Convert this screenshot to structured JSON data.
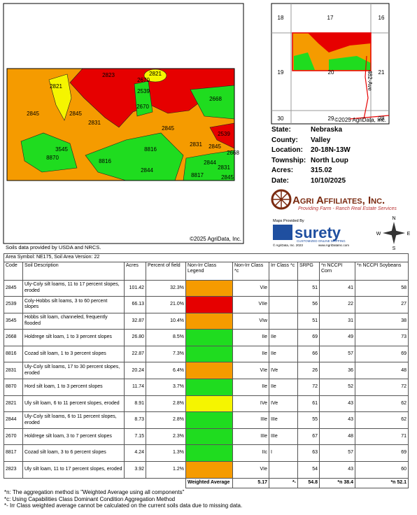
{
  "map": {
    "labels": [
      "2823",
      "2821",
      "2670",
      "2539",
      "2821",
      "2845",
      "2845",
      "2831",
      "2670",
      "2668",
      "2845",
      "2539",
      "3545",
      "8870",
      "8816",
      "8816",
      "2831",
      "2845",
      "2668",
      "2844",
      "2844",
      "2831",
      "8817",
      "2845"
    ],
    "copyright": "©2025 AgriData, Inc.",
    "source": "Soils data provided by USDA and NRCS."
  },
  "inset": {
    "labels": [
      "18",
      "17",
      "16",
      "19",
      "20",
      "21",
      "30",
      "29",
      "28",
      "482-Ave"
    ],
    "copyright": "©2025 AgriData, Inc."
  },
  "info": [
    {
      "label": "State:",
      "value": "Nebraska"
    },
    {
      "label": "County:",
      "value": "Valley"
    },
    {
      "label": "Location:",
      "value": "20-18N-13W"
    },
    {
      "label": "Township:",
      "value": "North Loup"
    },
    {
      "label": "Acres:",
      "value": "315.02"
    },
    {
      "label": "Date:",
      "value": "10/10/2025"
    }
  ],
  "logo": {
    "name": "Agri Affiliates, Inc.",
    "tagline": "Providing Farm - Ranch Real Estate Services"
  },
  "surety": {
    "provided_by": "Maps Provided By",
    "name": "surety",
    "tagline": "CUSTOMIZED ONLINE MAPPING",
    "copyright": "© AgriData, Inc. 2023",
    "url": "www.AgriDataInc.com"
  },
  "compass": [
    "N",
    "S",
    "E",
    "W"
  ],
  "table": {
    "area": "Area Symbol: NE175, Soil Area Version: 22",
    "headers": [
      "Code",
      "Soil Description",
      "Acres",
      "Percent of field",
      "Non-Irr Class Legend",
      "Non-Irr Class *c",
      "Irr Class *c",
      "SRPG",
      "*n NCCPI Corn",
      "*n NCCPI Soybeans"
    ],
    "rows": [
      {
        "code": "2845",
        "description": "Uly-Coly silt loams, 11 to 17 percent slopes, eroded",
        "acres": "101.42",
        "percent": "32.3%",
        "color": "#f59b00",
        "non_irr": "VIe",
        "srpg": "51",
        "corn": "41",
        "soy": "58"
      },
      {
        "code": "2539",
        "description": "Coly-Hobbs silt loams, 3 to 60 percent slopes",
        "acres": "66.13",
        "percent": "21.0%",
        "color": "#e60000",
        "non_irr": "VIIe",
        "srpg": "56",
        "corn": "22",
        "soy": "27"
      },
      {
        "code": "3545",
        "description": "Hobbs silt loam, channeled, frequently flooded",
        "acres": "32.87",
        "percent": "10.4%",
        "color": "#f59b00",
        "non_irr": "VIw",
        "srpg": "51",
        "corn": "31",
        "soy": "38"
      },
      {
        "code": "2668",
        "description": "Holdrege silt loam, 1 to 3 percent slopes",
        "acres": "26.80",
        "percent": "8.5%",
        "color": "#1fdc1f",
        "non_irr": "IIe",
        "irr": "IIe",
        "srpg": "69",
        "corn": "49",
        "soy": "73"
      },
      {
        "code": "8816",
        "description": "Cozad silt loam, 1 to 3 percent slopes",
        "acres": "22.87",
        "percent": "7.3%",
        "color": "#1fdc1f",
        "non_irr": "IIe",
        "irr": "IIe",
        "srpg": "66",
        "corn": "57",
        "soy": "69"
      },
      {
        "code": "2831",
        "description": "Uly-Coly silt loams, 17 to 30 percent slopes, eroded",
        "acres": "20.24",
        "percent": "6.4%",
        "color": "#f59b00",
        "non_irr": "VIe",
        "irr": "IVe",
        "srpg": "26",
        "corn": "36",
        "soy": "48"
      },
      {
        "code": "8870",
        "description": "Hord silt loam, 1 to 3 percent slopes",
        "acres": "11.74",
        "percent": "3.7%",
        "color": "#1fdc1f",
        "non_irr": "IIe",
        "irr": "IIe",
        "srpg": "72",
        "corn": "52",
        "soy": "72"
      },
      {
        "code": "2821",
        "description": "Uly silt loam, 6 to 11 percent slopes, eroded",
        "acres": "8.91",
        "percent": "2.8%",
        "color": "#f5f500",
        "non_irr": "IVe",
        "irr": "IVe",
        "srpg": "61",
        "corn": "43",
        "soy": "62"
      },
      {
        "code": "2844",
        "description": "Uly-Coly silt loams, 6 to 11 percent slopes, eroded",
        "acres": "8.73",
        "percent": "2.8%",
        "color": "#1fdc1f",
        "non_irr": "IIIe",
        "irr": "IIIe",
        "srpg": "55",
        "corn": "43",
        "soy": "62"
      },
      {
        "code": "2670",
        "description": "Holdrege silt loam, 3 to 7 percent slopes",
        "acres": "7.15",
        "percent": "2.3%",
        "color": "#1fdc1f",
        "non_irr": "IIIe",
        "irr": "IIIe",
        "srpg": "67",
        "corn": "48",
        "soy": "71"
      },
      {
        "code": "8817",
        "description": "Cozad silt loam, 3 to 6 percent slopes",
        "acres": "4.24",
        "percent": "1.3%",
        "color": "#1fdc1f",
        "non_irr": "IIc",
        "irr": "I",
        "srpg": "63",
        "corn": "57",
        "soy": "69"
      },
      {
        "code": "2823",
        "description": "Uly silt loam, 11 to 17 percent slopes, eroded",
        "acres": "3.92",
        "percent": "1.2%",
        "color": "#f59b00",
        "non_irr": "VIe",
        "srpg": "54",
        "corn": "43",
        "soy": "60"
      }
    ],
    "weighted": {
      "label": "Weighted Average",
      "non_irr": "5.17",
      "irr": "*-",
      "srpg": "54.8",
      "corn": "*n 38.4",
      "soy": "*n 52.1"
    }
  },
  "footnotes": [
    "*n: The aggregation method is \"Weighted Average using all components\"",
    "*c: Using Capabilities Class Dominant Condition Aggregation Method",
    "*- Irr Class weighted average cannot be calculated on the current soils data due to missing data."
  ]
}
